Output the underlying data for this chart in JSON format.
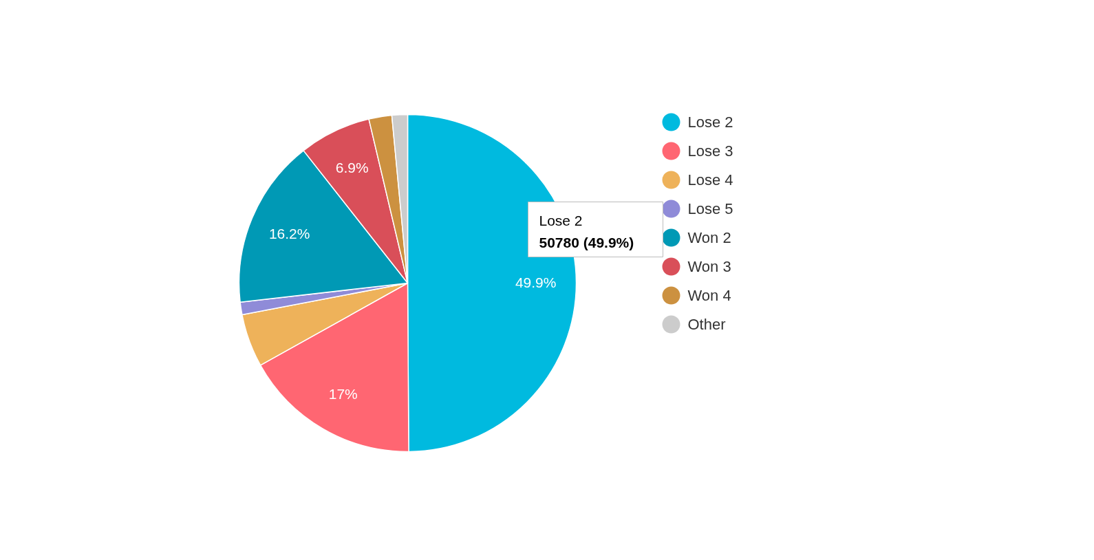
{
  "chart_data": {
    "type": "pie",
    "categories": [
      "Lose 2",
      "Lose 3",
      "Lose 4",
      "Lose 5",
      "Won 2",
      "Won 3",
      "Won 4",
      "Other"
    ],
    "values": [
      49.9,
      17,
      5.1,
      1.2,
      16.2,
      6.9,
      2.2,
      1.5
    ],
    "colors": [
      "#00badf",
      "#ff6672",
      "#eeb25a",
      "#8f8bd8",
      "#0099b5",
      "#d94f59",
      "#cc9140",
      "#cccccc"
    ],
    "value_labels": [
      "49.9%",
      "17%",
      null,
      null,
      "16.2%",
      "6.9%",
      null,
      null
    ],
    "legend": "right",
    "annotations": [
      "Lose 2",
      "50780 (49.9%)"
    ]
  }
}
